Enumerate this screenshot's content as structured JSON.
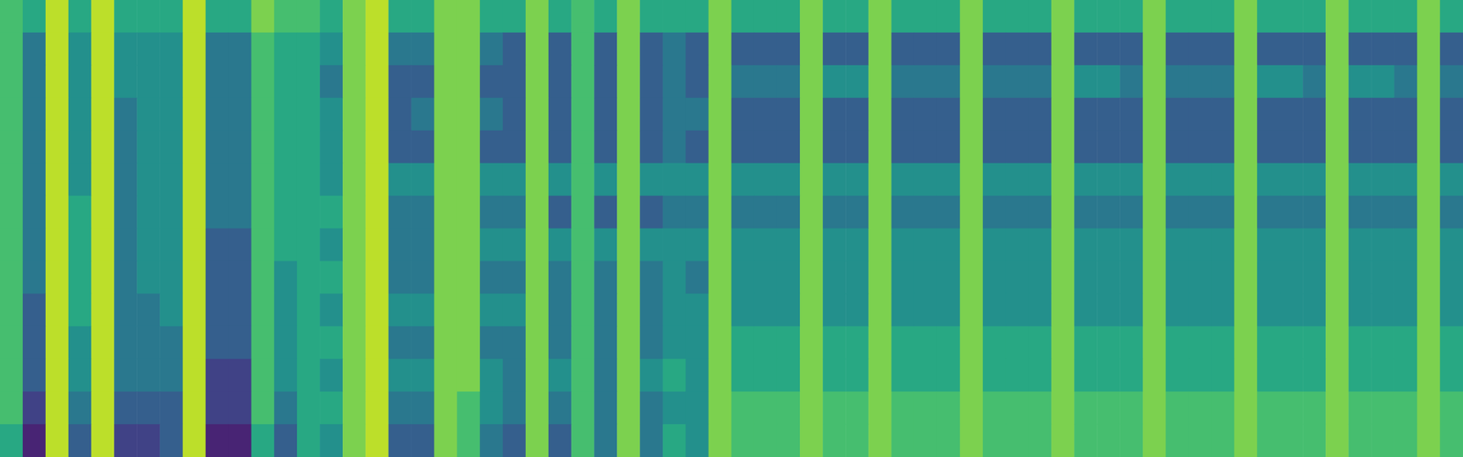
{
  "chart_data": {
    "type": "heatmap",
    "tick_labels": false,
    "color_range": [
      0,
      10
    ],
    "cells": [
      [
        7,
        6,
        9,
        6,
        9,
        6,
        6,
        6,
        9,
        6,
        6,
        8,
        7,
        7,
        6,
        8,
        9,
        6,
        6,
        8,
        8,
        6,
        6,
        8,
        6,
        7,
        6,
        8,
        6,
        6,
        6,
        8,
        6,
        6,
        6,
        8,
        6,
        6,
        8,
        6,
        6,
        6,
        8,
        6,
        6,
        6,
        8,
        6,
        6,
        6,
        8,
        6,
        6,
        6,
        8,
        6,
        6,
        6,
        8,
        6,
        6,
        6,
        8,
        6
      ],
      [
        7,
        4,
        9,
        5,
        9,
        5,
        5,
        5,
        9,
        4,
        4,
        7,
        6,
        6,
        5,
        8,
        9,
        4,
        4,
        8,
        8,
        4,
        3,
        8,
        3,
        7,
        3,
        8,
        3,
        4,
        3,
        8,
        3,
        3,
        3,
        8,
        3,
        3,
        8,
        3,
        3,
        3,
        8,
        3,
        3,
        3,
        8,
        3,
        3,
        3,
        8,
        3,
        3,
        3,
        8,
        3,
        3,
        3,
        8,
        3,
        3,
        3,
        8,
        3
      ],
      [
        7,
        4,
        9,
        5,
        9,
        5,
        5,
        5,
        9,
        4,
        4,
        7,
        6,
        6,
        4,
        8,
        9,
        3,
        3,
        8,
        8,
        3,
        3,
        8,
        3,
        7,
        3,
        8,
        3,
        4,
        3,
        8,
        4,
        4,
        4,
        8,
        5,
        5,
        8,
        4,
        4,
        4,
        8,
        4,
        4,
        4,
        8,
        5,
        5,
        4,
        8,
        4,
        4,
        4,
        8,
        5,
        5,
        4,
        8,
        5,
        5,
        4,
        8,
        4
      ],
      [
        7,
        4,
        9,
        5,
        9,
        4,
        5,
        5,
        9,
        4,
        4,
        7,
        6,
        6,
        5,
        8,
        9,
        3,
        4,
        8,
        8,
        4,
        3,
        8,
        3,
        7,
        3,
        8,
        3,
        4,
        4,
        8,
        3,
        3,
        3,
        8,
        3,
        3,
        8,
        3,
        3,
        3,
        8,
        3,
        3,
        3,
        8,
        3,
        3,
        3,
        8,
        3,
        3,
        3,
        8,
        3,
        3,
        3,
        8,
        3,
        3,
        3,
        8,
        3
      ],
      [
        7,
        4,
        9,
        5,
        9,
        4,
        5,
        5,
        9,
        4,
        4,
        7,
        6,
        6,
        5,
        8,
        9,
        3,
        3,
        8,
        8,
        3,
        3,
        8,
        3,
        7,
        3,
        8,
        3,
        4,
        3,
        8,
        3,
        3,
        3,
        8,
        3,
        3,
        8,
        3,
        3,
        3,
        8,
        3,
        3,
        3,
        8,
        3,
        3,
        3,
        8,
        3,
        3,
        3,
        8,
        3,
        3,
        3,
        8,
        3,
        3,
        3,
        8,
        3
      ],
      [
        7,
        4,
        9,
        5,
        9,
        4,
        5,
        5,
        9,
        4,
        4,
        7,
        6,
        6,
        5,
        8,
        9,
        5,
        5,
        8,
        8,
        5,
        5,
        8,
        5,
        7,
        5,
        8,
        5,
        5,
        5,
        8,
        5,
        5,
        5,
        8,
        5,
        5,
        8,
        5,
        5,
        5,
        8,
        5,
        5,
        5,
        8,
        5,
        5,
        5,
        8,
        5,
        5,
        5,
        8,
        5,
        5,
        5,
        8,
        5,
        5,
        5,
        8,
        5
      ],
      [
        7,
        4,
        9,
        6,
        9,
        4,
        5,
        5,
        9,
        4,
        4,
        7,
        6,
        6,
        6,
        8,
        9,
        4,
        4,
        8,
        8,
        4,
        4,
        8,
        3,
        7,
        3,
        8,
        3,
        4,
        4,
        8,
        4,
        4,
        4,
        8,
        4,
        4,
        8,
        4,
        4,
        4,
        8,
        4,
        4,
        4,
        8,
        4,
        4,
        4,
        8,
        4,
        4,
        4,
        8,
        4,
        4,
        4,
        8,
        4,
        4,
        4,
        8,
        4
      ],
      [
        7,
        4,
        9,
        6,
        9,
        4,
        5,
        5,
        9,
        3,
        3,
        7,
        6,
        6,
        5,
        8,
        9,
        4,
        4,
        8,
        8,
        5,
        5,
        8,
        5,
        7,
        5,
        8,
        5,
        5,
        5,
        8,
        5,
        5,
        5,
        8,
        5,
        5,
        8,
        5,
        5,
        5,
        8,
        5,
        5,
        5,
        8,
        5,
        5,
        5,
        8,
        5,
        5,
        5,
        8,
        5,
        5,
        5,
        8,
        5,
        5,
        5,
        8,
        5
      ],
      [
        7,
        4,
        9,
        6,
        9,
        4,
        5,
        5,
        9,
        3,
        3,
        7,
        5,
        6,
        6,
        8,
        9,
        4,
        4,
        8,
        8,
        4,
        4,
        8,
        4,
        7,
        4,
        8,
        4,
        5,
        4,
        8,
        5,
        5,
        5,
        8,
        5,
        5,
        8,
        5,
        5,
        5,
        8,
        5,
        5,
        5,
        8,
        5,
        5,
        5,
        8,
        5,
        5,
        5,
        8,
        5,
        5,
        5,
        8,
        5,
        5,
        5,
        8,
        5
      ],
      [
        7,
        3,
        9,
        6,
        9,
        4,
        4,
        5,
        9,
        3,
        3,
        7,
        5,
        6,
        5,
        8,
        9,
        5,
        5,
        8,
        8,
        5,
        5,
        8,
        4,
        7,
        4,
        8,
        4,
        5,
        5,
        8,
        5,
        5,
        5,
        8,
        5,
        5,
        8,
        5,
        5,
        5,
        8,
        5,
        5,
        5,
        8,
        5,
        5,
        5,
        8,
        5,
        5,
        5,
        8,
        5,
        5,
        5,
        8,
        5,
        5,
        5,
        8,
        5
      ],
      [
        7,
        3,
        9,
        5,
        9,
        4,
        4,
        4,
        9,
        3,
        3,
        7,
        5,
        6,
        6,
        8,
        9,
        4,
        4,
        8,
        8,
        4,
        4,
        8,
        4,
        7,
        4,
        8,
        4,
        5,
        5,
        8,
        6,
        6,
        6,
        8,
        6,
        6,
        8,
        6,
        6,
        6,
        8,
        6,
        6,
        6,
        8,
        6,
        6,
        6,
        8,
        6,
        6,
        6,
        8,
        6,
        6,
        6,
        8,
        6,
        6,
        6,
        8,
        6
      ],
      [
        7,
        3,
        9,
        5,
        9,
        4,
        4,
        4,
        9,
        2,
        2,
        7,
        5,
        6,
        5,
        8,
        9,
        5,
        5,
        8,
        8,
        5,
        4,
        8,
        5,
        7,
        4,
        8,
        5,
        6,
        5,
        8,
        6,
        6,
        6,
        8,
        6,
        6,
        8,
        6,
        6,
        6,
        8,
        6,
        6,
        6,
        8,
        6,
        6,
        6,
        8,
        6,
        6,
        6,
        8,
        6,
        6,
        6,
        8,
        6,
        6,
        6,
        8,
        6
      ],
      [
        7,
        2,
        9,
        4,
        9,
        3,
        3,
        3,
        9,
        2,
        2,
        7,
        4,
        6,
        6,
        8,
        9,
        4,
        4,
        8,
        7,
        5,
        4,
        8,
        4,
        7,
        4,
        8,
        4,
        5,
        5,
        8,
        7,
        7,
        7,
        8,
        7,
        7,
        8,
        7,
        7,
        7,
        8,
        7,
        7,
        7,
        8,
        7,
        7,
        7,
        8,
        7,
        7,
        7,
        8,
        7,
        7,
        7,
        8,
        7,
        7,
        7,
        8,
        7
      ],
      [
        6,
        1,
        9,
        3,
        9,
        2,
        2,
        3,
        9,
        1,
        1,
        6,
        3,
        6,
        5,
        8,
        9,
        3,
        3,
        8,
        7,
        4,
        3,
        8,
        3,
        7,
        4,
        8,
        4,
        6,
        5,
        8,
        7,
        7,
        7,
        8,
        7,
        7,
        8,
        7,
        7,
        7,
        8,
        7,
        7,
        7,
        8,
        7,
        7,
        7,
        8,
        7,
        7,
        7,
        8,
        7,
        7,
        7,
        8,
        7,
        7,
        7,
        8,
        7
      ]
    ]
  }
}
